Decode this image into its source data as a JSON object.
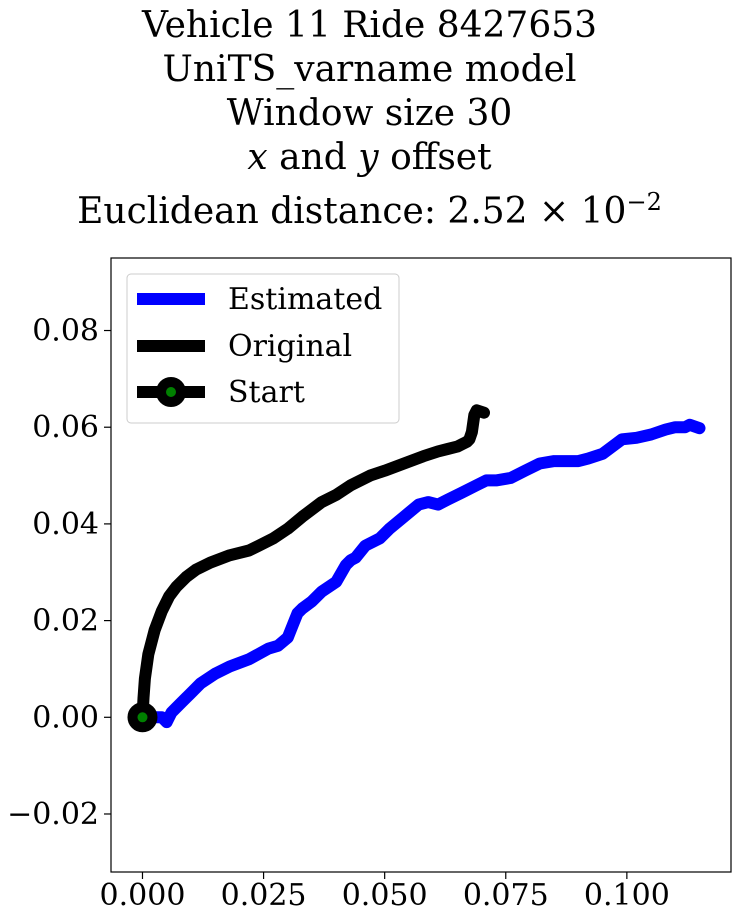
{
  "title": {
    "line1": "Vehicle 11 Ride 8427653",
    "line2": "UniTS_varname model",
    "line3": "Window size 30",
    "line4_x": "x",
    "line4_and": " and ",
    "line4_y": "y",
    "line4_rest": " offset",
    "line5_prefix": "Euclidean distance: 2.52 × 10",
    "line5_exp": "−2"
  },
  "chart_data": {
    "type": "line",
    "xlim": [
      -0.0065,
      0.1215
    ],
    "ylim": [
      -0.032,
      0.095
    ],
    "xticks": [
      0.0,
      0.025,
      0.05,
      0.075,
      0.1
    ],
    "xtick_labels": [
      "0.000",
      "0.025",
      "0.050",
      "0.075",
      "0.100"
    ],
    "yticks": [
      -0.02,
      0.0,
      0.02,
      0.04,
      0.06,
      0.08
    ],
    "ytick_labels": [
      "−0.02",
      "0.00",
      "0.02",
      "0.04",
      "0.06",
      "0.08"
    ],
    "grid": false,
    "legend_position": "top-left",
    "series": [
      {
        "name": "Estimated",
        "color": "#0000ff",
        "x": [
          0.0,
          0.004,
          0.005,
          0.006,
          0.008,
          0.01,
          0.012,
          0.015,
          0.018,
          0.022,
          0.026,
          0.028,
          0.03,
          0.031,
          0.032,
          0.033,
          0.035,
          0.037,
          0.04,
          0.042,
          0.043,
          0.044,
          0.046,
          0.049,
          0.051,
          0.054,
          0.057,
          0.059,
          0.061,
          0.063,
          0.066,
          0.069,
          0.071,
          0.073,
          0.076,
          0.079,
          0.082,
          0.085,
          0.087,
          0.09,
          0.092,
          0.095,
          0.097,
          0.099,
          0.102,
          0.105,
          0.108,
          0.11,
          0.112,
          0.113,
          0.115
        ],
        "y": [
          0.0,
          0.0,
          -0.001,
          0.001,
          0.003,
          0.005,
          0.007,
          0.009,
          0.0105,
          0.012,
          0.0142,
          0.0148,
          0.0165,
          0.019,
          0.0215,
          0.0225,
          0.024,
          0.026,
          0.028,
          0.0315,
          0.0325,
          0.033,
          0.0355,
          0.037,
          0.039,
          0.0415,
          0.044,
          0.0445,
          0.044,
          0.045,
          0.0465,
          0.048,
          0.049,
          0.049,
          0.0495,
          0.051,
          0.0525,
          0.053,
          0.053,
          0.053,
          0.0535,
          0.0545,
          0.056,
          0.0575,
          0.0578,
          0.0585,
          0.0595,
          0.06,
          0.06,
          0.0605,
          0.0598
        ]
      },
      {
        "name": "Original",
        "color": "#000000",
        "x": [
          0.0,
          0.0002,
          0.0005,
          0.0012,
          0.0025,
          0.004,
          0.0055,
          0.007,
          0.009,
          0.011,
          0.014,
          0.018,
          0.022,
          0.024,
          0.027,
          0.03,
          0.033,
          0.037,
          0.04,
          0.043,
          0.047,
          0.05,
          0.054,
          0.058,
          0.061,
          0.063,
          0.065,
          0.066,
          0.067,
          0.0675,
          0.068,
          0.0685,
          0.069,
          0.0705
        ],
        "y": [
          0.0,
          0.004,
          0.008,
          0.013,
          0.018,
          0.022,
          0.025,
          0.027,
          0.029,
          0.0305,
          0.032,
          0.0335,
          0.0345,
          0.0355,
          0.037,
          0.039,
          0.0415,
          0.0445,
          0.046,
          0.048,
          0.05,
          0.051,
          0.0525,
          0.054,
          0.055,
          0.0555,
          0.056,
          0.0565,
          0.057,
          0.0575,
          0.059,
          0.0625,
          0.0635,
          0.063
        ]
      }
    ],
    "start": {
      "name": "Start",
      "x": 0.0,
      "y": 0.0,
      "edge_color": "#000000",
      "face_color": "#008000"
    }
  }
}
